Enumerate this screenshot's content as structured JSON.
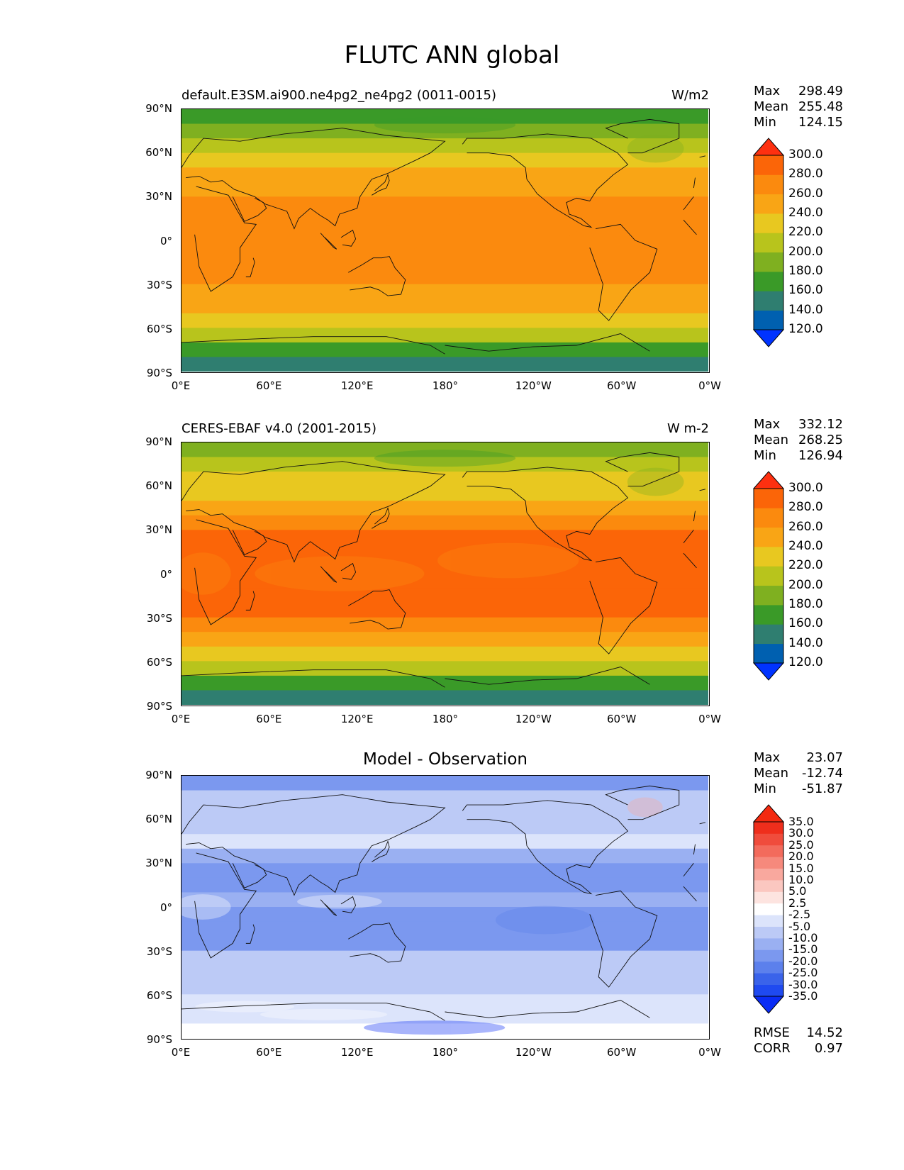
{
  "figure_title": "FLUTC ANN global",
  "panels": [
    {
      "title": "default.E3SM.ai900.ne4pg2_ne4pg2 (0011-0015)",
      "units": "W/m2",
      "stats": {
        "max_label": "Max",
        "max": "298.49",
        "mean_label": "Mean",
        "mean": "255.48",
        "min_label": "Min",
        "min": "124.15"
      },
      "colorbar": {
        "levels": [
          "120.0",
          "140.0",
          "160.0",
          "180.0",
          "200.0",
          "220.0",
          "240.0",
          "260.0",
          "280.0",
          "300.0"
        ],
        "colors": [
          "#0033ff",
          "#0060b0",
          "#2f7e70",
          "#3a9a28",
          "#7fb020",
          "#b8c41c",
          "#e8c820",
          "#f9a515",
          "#fb8a0e",
          "#fb6508",
          "#fe3010"
        ]
      }
    },
    {
      "title": "CERES-EBAF v4.0 (2001-2015)",
      "units": "W m-2",
      "stats": {
        "max_label": "Max",
        "max": "332.12",
        "mean_label": "Mean",
        "mean": "268.25",
        "min_label": "Min",
        "min": "126.94"
      },
      "colorbar": {
        "levels": [
          "120.0",
          "140.0",
          "160.0",
          "180.0",
          "200.0",
          "220.0",
          "240.0",
          "260.0",
          "280.0",
          "300.0"
        ],
        "colors": [
          "#0033ff",
          "#0060b0",
          "#2f7e70",
          "#3a9a28",
          "#7fb020",
          "#b8c41c",
          "#e8c820",
          "#f9a515",
          "#fb8a0e",
          "#fb6508",
          "#fe3010"
        ]
      }
    },
    {
      "title": "Model - Observation",
      "units": "",
      "stats": {
        "max_label": "Max",
        "max": "23.07",
        "mean_label": "Mean",
        "mean": "-12.74",
        "min_label": "Min",
        "min": "-51.87"
      },
      "colorbar": {
        "levels": [
          "-35.0",
          "-30.0",
          "-25.0",
          "-20.0",
          "-15.0",
          "-10.0",
          "-5.0",
          "-2.5",
          "2.5",
          "5.0",
          "10.0",
          "15.0",
          "20.0",
          "25.0",
          "30.0",
          "35.0"
        ],
        "colors": [
          "#0a2cf5",
          "#1f4af0",
          "#3a63ea",
          "#5c80ec",
          "#7b98ef",
          "#9ab0f2",
          "#bccaf6",
          "#dce4fb",
          "#ffffff",
          "#fde4e0",
          "#fbc7c0",
          "#f9a89e",
          "#f6897c",
          "#f36b5c",
          "#f04c3c",
          "#ef2e1c",
          "#f42a10"
        ]
      },
      "rmse_label": "RMSE",
      "rmse": "14.52",
      "corr_label": "CORR",
      "corr": "0.97"
    }
  ],
  "axes": {
    "xticks": [
      "0°E",
      "60°E",
      "120°E",
      "180°",
      "120°W",
      "60°W",
      "0°W"
    ],
    "yticks": [
      "90°N",
      "60°N",
      "30°N",
      "0°",
      "30°S",
      "60°S",
      "90°S"
    ]
  },
  "chart_data": [
    {
      "type": "heatmap",
      "title": "default.E3SM.ai900.ne4pg2_ne4pg2 (0011-0015)",
      "units": "W/m2",
      "variable": "FLUTC",
      "season": "ANN",
      "x_range": [
        "0°E",
        "0°W"
      ],
      "y_range": [
        "90°S",
        "90°N"
      ],
      "stats": {
        "max": 298.49,
        "mean": 255.48,
        "min": 124.15
      },
      "zonal_mean_profile": [
        {
          "lat": 85,
          "value": 175
        },
        {
          "lat": 75,
          "value": 195
        },
        {
          "lat": 65,
          "value": 210
        },
        {
          "lat": 55,
          "value": 228
        },
        {
          "lat": 45,
          "value": 245
        },
        {
          "lat": 35,
          "value": 258
        },
        {
          "lat": 25,
          "value": 268
        },
        {
          "lat": 15,
          "value": 272
        },
        {
          "lat": 5,
          "value": 275
        },
        {
          "lat": -5,
          "value": 275
        },
        {
          "lat": -15,
          "value": 272
        },
        {
          "lat": -25,
          "value": 265
        },
        {
          "lat": -35,
          "value": 255
        },
        {
          "lat": -45,
          "value": 240
        },
        {
          "lat": -55,
          "value": 225
        },
        {
          "lat": -65,
          "value": 200
        },
        {
          "lat": -75,
          "value": 160
        },
        {
          "lat": -85,
          "value": 140
        }
      ]
    },
    {
      "type": "heatmap",
      "title": "CERES-EBAF v4.0 (2001-2015)",
      "units": "W m-2",
      "x_range": [
        "0°E",
        "0°W"
      ],
      "y_range": [
        "90°S",
        "90°N"
      ],
      "stats": {
        "max": 332.12,
        "mean": 268.25,
        "min": 126.94
      },
      "zonal_mean_profile": [
        {
          "lat": 85,
          "value": 195
        },
        {
          "lat": 75,
          "value": 205
        },
        {
          "lat": 65,
          "value": 220
        },
        {
          "lat": 55,
          "value": 235
        },
        {
          "lat": 45,
          "value": 250
        },
        {
          "lat": 35,
          "value": 270
        },
        {
          "lat": 25,
          "value": 285
        },
        {
          "lat": 15,
          "value": 288
        },
        {
          "lat": 5,
          "value": 290
        },
        {
          "lat": -5,
          "value": 292
        },
        {
          "lat": -15,
          "value": 288
        },
        {
          "lat": -25,
          "value": 282
        },
        {
          "lat": -35,
          "value": 265
        },
        {
          "lat": -45,
          "value": 250
        },
        {
          "lat": -55,
          "value": 232
        },
        {
          "lat": -65,
          "value": 200
        },
        {
          "lat": -75,
          "value": 165
        },
        {
          "lat": -85,
          "value": 140
        }
      ]
    },
    {
      "type": "heatmap",
      "title": "Model - Observation",
      "x_range": [
        "0°E",
        "0°W"
      ],
      "y_range": [
        "90°S",
        "90°N"
      ],
      "stats": {
        "max": 23.07,
        "mean": -12.74,
        "min": -51.87,
        "rmse": 14.52,
        "corr": 0.97
      },
      "zonal_mean_profile": [
        {
          "lat": 85,
          "value": -20
        },
        {
          "lat": 75,
          "value": -10
        },
        {
          "lat": 65,
          "value": -10
        },
        {
          "lat": 55,
          "value": -7
        },
        {
          "lat": 45,
          "value": -5
        },
        {
          "lat": 35,
          "value": -12
        },
        {
          "lat": 25,
          "value": -17
        },
        {
          "lat": 15,
          "value": -16
        },
        {
          "lat": 5,
          "value": -15
        },
        {
          "lat": -5,
          "value": -17
        },
        {
          "lat": -15,
          "value": -16
        },
        {
          "lat": -25,
          "value": -17
        },
        {
          "lat": -35,
          "value": -10
        },
        {
          "lat": -45,
          "value": -10
        },
        {
          "lat": -55,
          "value": -7
        },
        {
          "lat": -65,
          "value": -5
        },
        {
          "lat": -75,
          "value": -5
        },
        {
          "lat": -85,
          "value": 0
        }
      ]
    }
  ]
}
